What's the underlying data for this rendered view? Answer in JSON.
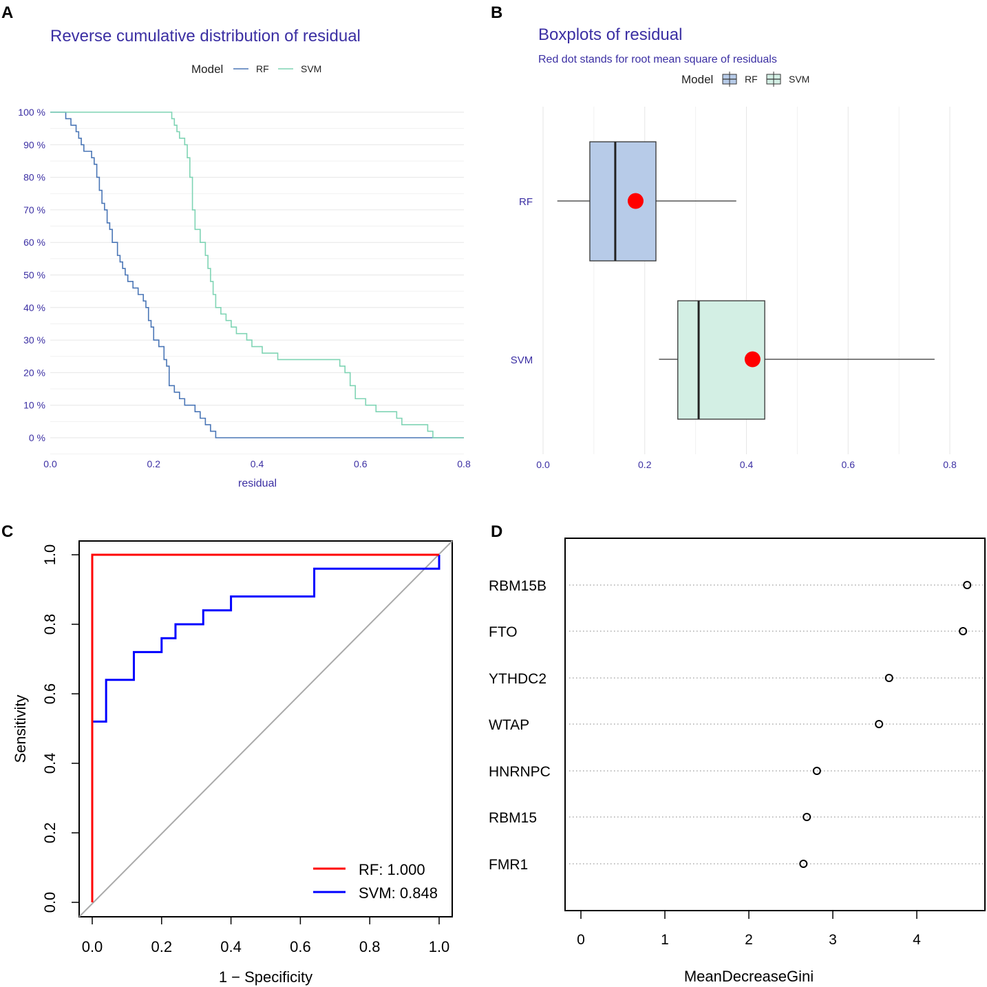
{
  "colors": {
    "rf": "#4a76b6",
    "svm": "#7fd4b4",
    "rf_fill": "#b7cbe8",
    "svm_fill": "#d3efe4",
    "title": "#3b2fa3",
    "grid": "#e6e6e6",
    "red": "#ff0000",
    "blue": "#0000ff"
  },
  "panels": {
    "A": {
      "letter": "A"
    },
    "B": {
      "letter": "B"
    },
    "C": {
      "letter": "C"
    },
    "D": {
      "letter": "D"
    }
  },
  "chart_data": [
    {
      "id": "A",
      "type": "line",
      "title": "Reverse cumulative distribution of residual",
      "xlabel": "residual",
      "ylabel": "",
      "legend_title": "Model",
      "legend_position": "top",
      "xlim": [
        0,
        0.8
      ],
      "ylim": [
        0,
        100
      ],
      "xticks": [
        "0.0",
        "0.2",
        "0.4",
        "0.6",
        "0.8"
      ],
      "yticks": [
        "0 %",
        "10 %",
        "20 %",
        "30 %",
        "40 %",
        "50 %",
        "60 %",
        "70 %",
        "80 %",
        "90 %",
        "100 %"
      ],
      "series": [
        {
          "name": "RF",
          "x": [
            0.03,
            0.04,
            0.05,
            0.055,
            0.06,
            0.065,
            0.08,
            0.085,
            0.09,
            0.095,
            0.1,
            0.105,
            0.11,
            0.115,
            0.12,
            0.13,
            0.135,
            0.14,
            0.145,
            0.15,
            0.16,
            0.17,
            0.18,
            0.185,
            0.19,
            0.195,
            0.2,
            0.21,
            0.22,
            0.225,
            0.23,
            0.24,
            0.25,
            0.26,
            0.28,
            0.29,
            0.3,
            0.31,
            0.32,
            0.38,
            0.8
          ],
          "y": [
            98,
            96,
            94,
            92,
            90,
            88,
            86,
            84,
            80,
            76,
            72,
            70,
            66,
            64,
            60,
            56,
            54,
            52,
            50,
            48,
            46,
            44,
            42,
            40,
            36,
            34,
            30,
            28,
            24,
            22,
            16,
            14,
            12,
            10,
            8,
            6,
            4,
            2,
            0,
            0,
            0
          ]
        },
        {
          "name": "SVM",
          "x": [
            0.235,
            0.24,
            0.245,
            0.25,
            0.26,
            0.265,
            0.27,
            0.275,
            0.28,
            0.29,
            0.3,
            0.305,
            0.31,
            0.315,
            0.32,
            0.33,
            0.34,
            0.35,
            0.36,
            0.38,
            0.39,
            0.41,
            0.44,
            0.52,
            0.56,
            0.57,
            0.58,
            0.59,
            0.61,
            0.63,
            0.67,
            0.68,
            0.73,
            0.74,
            0.77,
            0.8
          ],
          "y": [
            98,
            96,
            94,
            92,
            90,
            86,
            80,
            70,
            64,
            60,
            56,
            52,
            48,
            44,
            40,
            38,
            36,
            34,
            32,
            30,
            28,
            26,
            24,
            24,
            22,
            20,
            16,
            12,
            10,
            8,
            6,
            4,
            2,
            0,
            0,
            0
          ]
        }
      ]
    },
    {
      "id": "B",
      "type": "box",
      "title": "Boxplots of residual",
      "subtitle": "Red dot stands for root mean square of residuals",
      "legend_title": "Model",
      "legend_position": "top",
      "xlim": [
        0,
        0.8
      ],
      "xticks": [
        "0.0",
        "0.2",
        "0.4",
        "0.6",
        "0.8"
      ],
      "categories": [
        "RF",
        "SVM"
      ],
      "series": [
        {
          "name": "RF",
          "whisker_low": 0.028,
          "q1": 0.092,
          "median": 0.142,
          "q3": 0.222,
          "whisker_high": 0.38,
          "rms": 0.182
        },
        {
          "name": "SVM",
          "whisker_low": 0.228,
          "q1": 0.265,
          "median": 0.306,
          "q3": 0.436,
          "whisker_high": 0.77,
          "rms": 0.412
        }
      ]
    },
    {
      "id": "C",
      "type": "line",
      "title": "",
      "xlabel": "1 − Specificity",
      "ylabel": "Sensitivity",
      "xlim": [
        0,
        1
      ],
      "ylim": [
        0,
        1
      ],
      "xticks": [
        "0.0",
        "0.2",
        "0.4",
        "0.6",
        "0.8",
        "1.0"
      ],
      "yticks": [
        "0.0",
        "0.2",
        "0.4",
        "0.6",
        "0.8",
        "1.0"
      ],
      "legend_position": "bottom-right",
      "series": [
        {
          "name": "RF",
          "label": "RF: 1.000",
          "x": [
            0,
            0,
            0,
            1
          ],
          "y": [
            0,
            0.52,
            1,
            1
          ]
        },
        {
          "name": "SVM",
          "label": "SVM: 0.848",
          "x": [
            0,
            0,
            0.04,
            0.04,
            0.12,
            0.12,
            0.2,
            0.2,
            0.24,
            0.24,
            0.32,
            0.32,
            0.4,
            0.4,
            0.64,
            0.64,
            1,
            1
          ],
          "y": [
            0,
            0.52,
            0.52,
            0.64,
            0.64,
            0.72,
            0.72,
            0.76,
            0.76,
            0.8,
            0.8,
            0.84,
            0.84,
            0.88,
            0.88,
            0.96,
            0.96,
            1
          ]
        }
      ]
    },
    {
      "id": "D",
      "type": "scatter",
      "title": "",
      "xlabel": "MeanDecreaseGini",
      "xlim": [
        0,
        5
      ],
      "xticks": [
        "0",
        "1",
        "2",
        "3",
        "4"
      ],
      "categories": [
        "RBM15B",
        "FTO",
        "YTHDC2",
        "WTAP",
        "HNRNPC",
        "RBM15",
        "FMR1"
      ],
      "values": [
        4.6,
        4.55,
        3.67,
        3.55,
        2.81,
        2.69,
        2.65
      ]
    }
  ]
}
